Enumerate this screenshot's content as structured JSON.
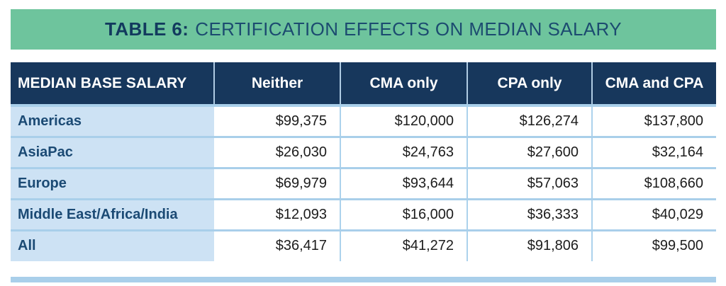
{
  "banner": {
    "label": "TABLE 6:",
    "title": "CERTIFICATION EFFECTS ON MEDIAN SALARY"
  },
  "chart_data": {
    "type": "table",
    "title": "TABLE 6: CERTIFICATION EFFECTS ON MEDIAN SALARY",
    "columns": [
      "MEDIAN BASE SALARY",
      "Neither",
      "CMA only",
      "CPA only",
      "CMA and CPA"
    ],
    "rows": [
      [
        "Americas",
        "$99,375",
        "$120,000",
        "$126,274",
        "$137,800"
      ],
      [
        "AsiaPac",
        "$26,030",
        "$24,763",
        "$27,600",
        "$32,164"
      ],
      [
        "Europe",
        "$69,979",
        "$93,644",
        "$57,063",
        "$108,660"
      ],
      [
        "Middle East/Africa/India",
        "$12,093",
        "$16,000",
        "$36,333",
        "$40,029"
      ],
      [
        "All",
        "$36,417",
        "$41,272",
        "$91,806",
        "$99,500"
      ]
    ],
    "layout_hints": {
      "first_column_role": "row labels",
      "value_alignment": "right",
      "header_style": "navy background, white bold text",
      "row_label_style": "light blue background, navy bold text"
    }
  },
  "colors": {
    "banner_green": "#6EC49D",
    "banner_label_navy": "#123A5E",
    "banner_title_navy": "#1C4B70",
    "header_navy": "#17375C",
    "header_text": "#FFFFFF",
    "row_label_bg": "#CDE2F4",
    "row_label_text": "#1B4A74",
    "value_text": "#1C1C1C",
    "grid_blue": "#A9CFEA"
  }
}
